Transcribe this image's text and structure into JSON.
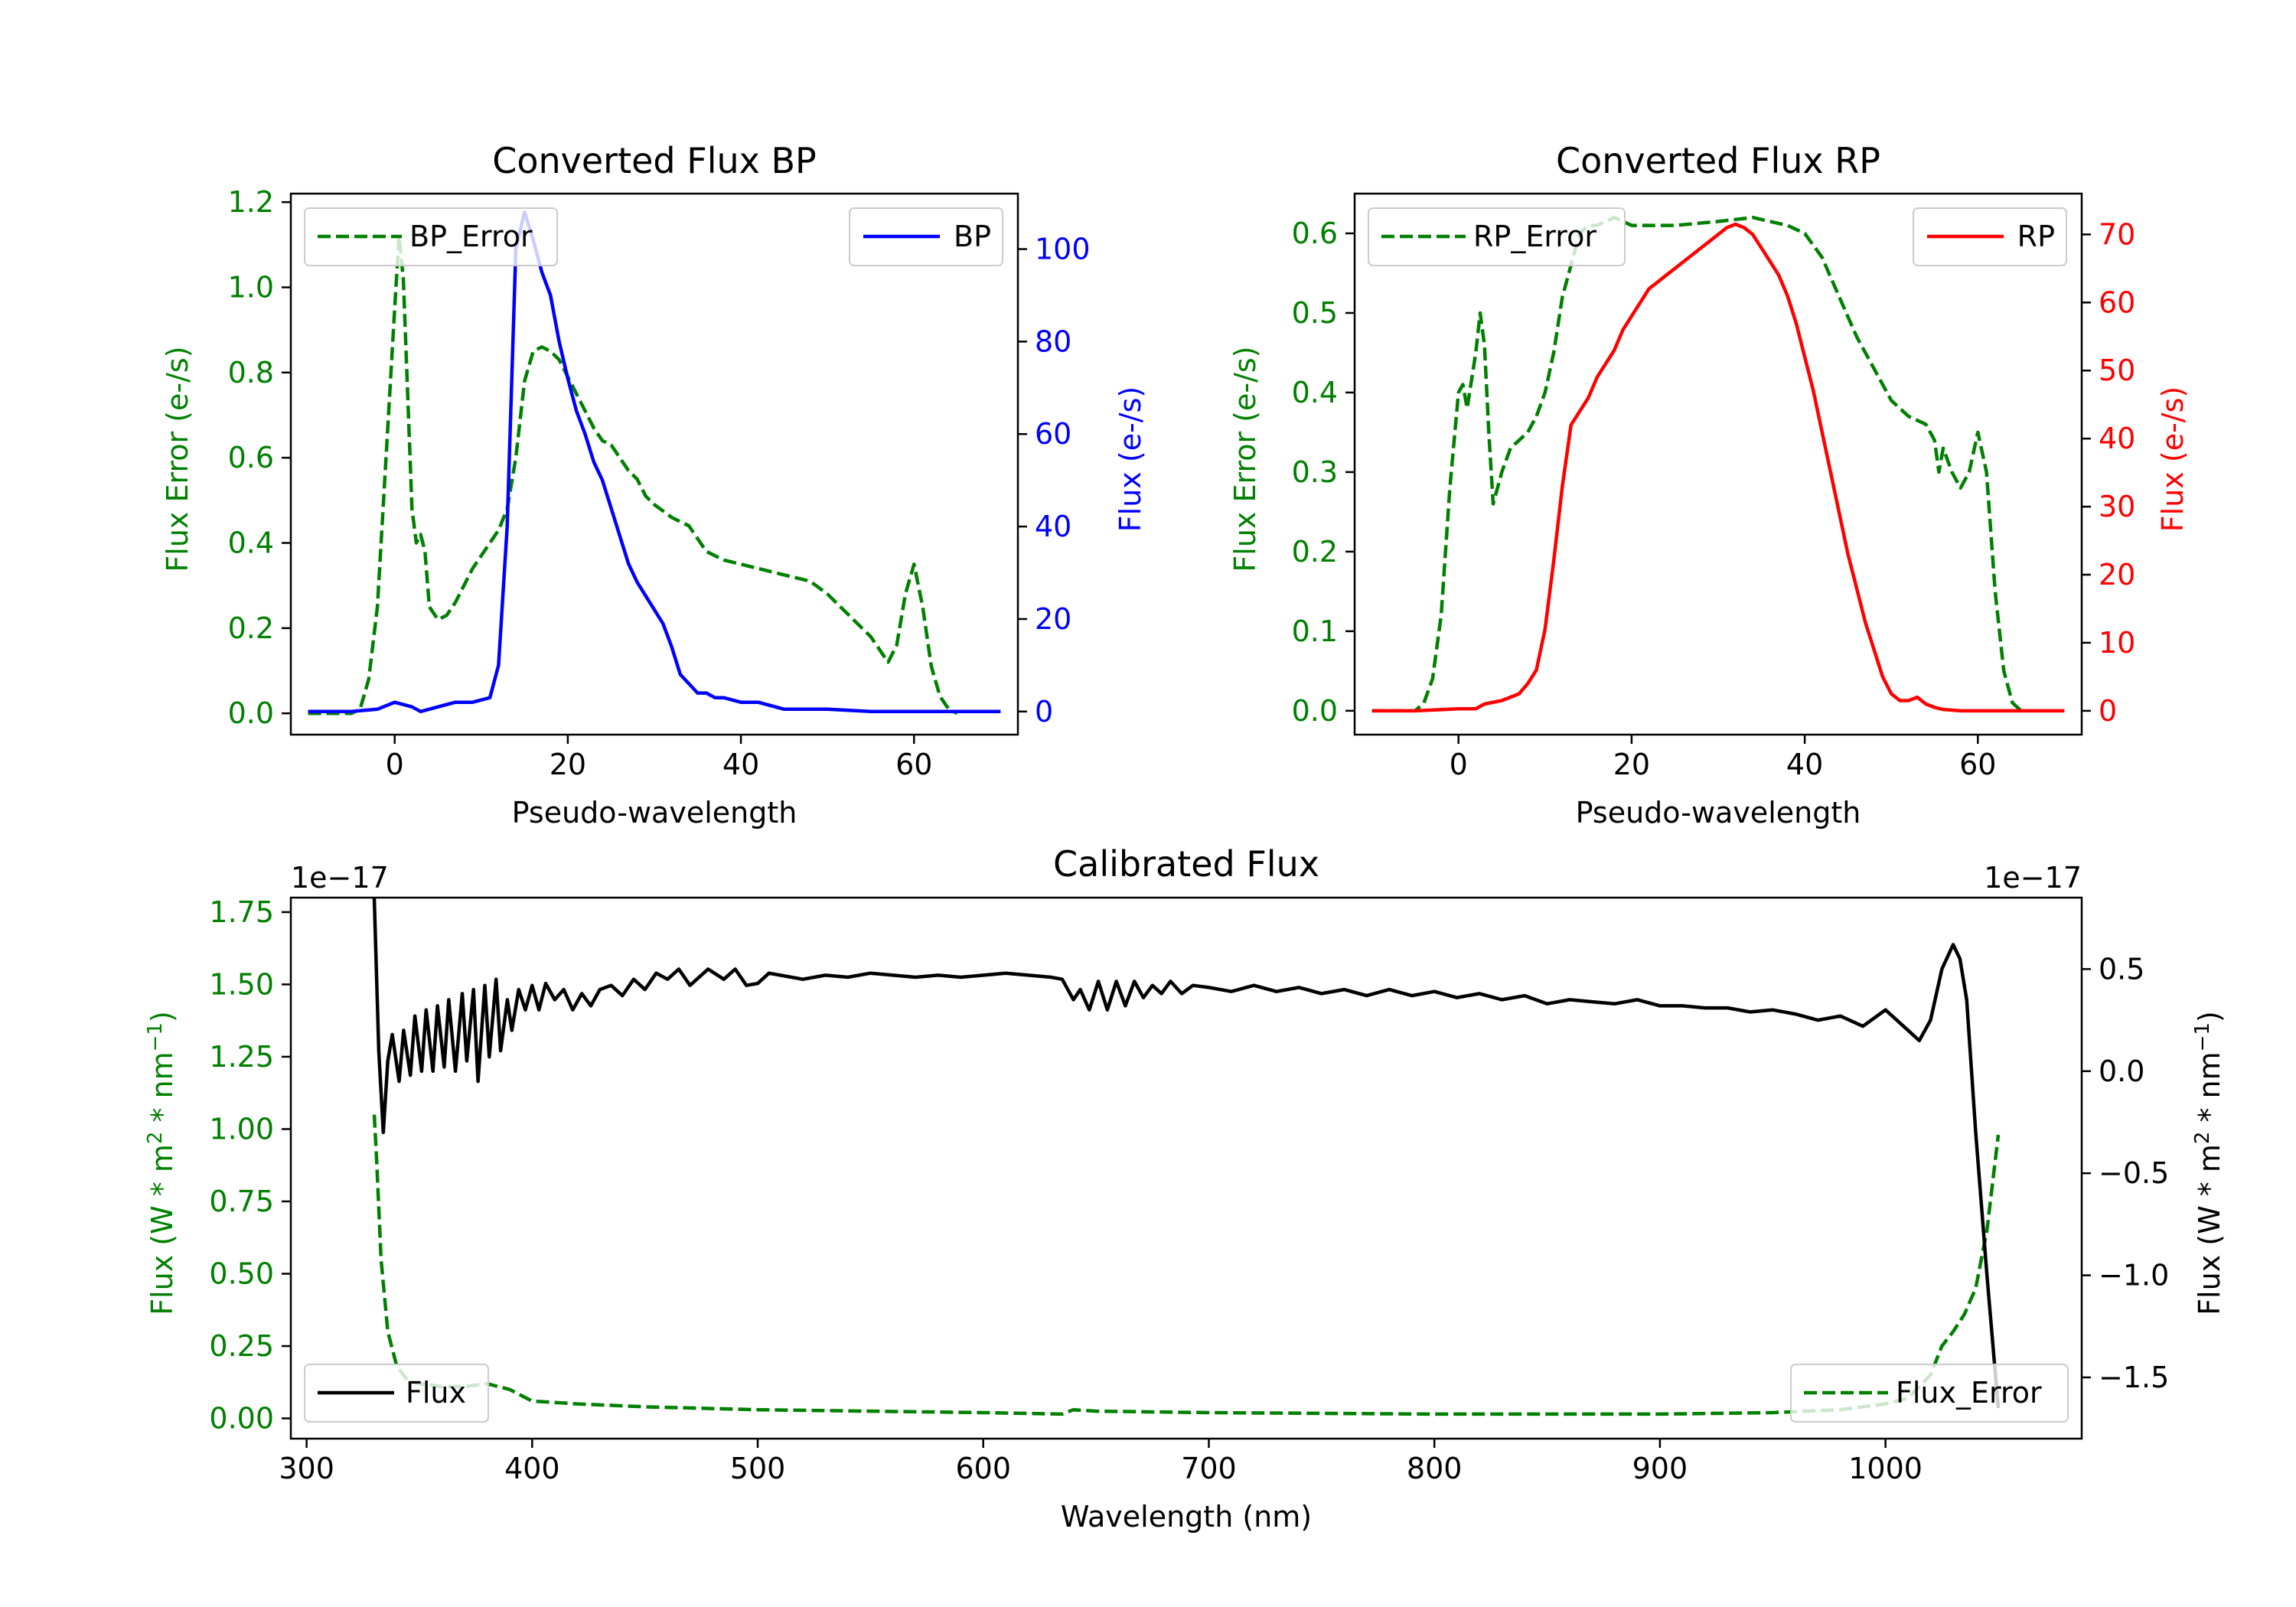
{
  "chart_data": [
    {
      "id": "bp",
      "type": "line",
      "title": "Converted Flux BP",
      "xlabel": "Pseudo-wavelength",
      "xlim": [
        -12,
        72
      ],
      "xticks": [
        0,
        20,
        40,
        60
      ],
      "left_axis": {
        "label": "Flux Error (e-/s)",
        "color": "#008000",
        "lim": [
          -0.05,
          1.22
        ],
        "ticks": [
          "0.0",
          "0.2",
          "0.4",
          "0.6",
          "0.8",
          "1.0",
          "1.2"
        ]
      },
      "right_axis": {
        "label": "Flux (e-/s)",
        "color": "#0000ff",
        "lim": [
          -5,
          112
        ],
        "ticks": [
          "0",
          "20",
          "40",
          "60",
          "80",
          "100"
        ]
      },
      "series": [
        {
          "name": "BP_Error",
          "axis": "left",
          "color": "#008000",
          "dashed": true,
          "x": [
            -10,
            -5,
            -4,
            -3,
            -2,
            -1,
            0,
            0.5,
            1,
            2,
            2.5,
            3,
            3.5,
            4,
            5,
            6,
            7,
            8,
            9,
            10,
            11,
            12,
            13,
            14,
            15,
            16,
            17,
            18,
            19,
            20,
            21,
            22,
            23,
            24,
            25,
            26,
            27,
            28,
            29,
            30,
            32,
            34,
            35,
            36,
            38,
            40,
            44,
            48,
            50,
            52,
            55,
            57,
            58,
            59,
            60,
            61,
            62,
            63,
            64,
            65
          ],
          "y": [
            0,
            0.0,
            0.01,
            0.08,
            0.25,
            0.6,
            0.95,
            1.12,
            1.02,
            0.48,
            0.4,
            0.42,
            0.38,
            0.25,
            0.22,
            0.23,
            0.26,
            0.3,
            0.34,
            0.37,
            0.4,
            0.43,
            0.48,
            0.6,
            0.78,
            0.85,
            0.86,
            0.85,
            0.83,
            0.79,
            0.75,
            0.71,
            0.67,
            0.64,
            0.63,
            0.6,
            0.57,
            0.55,
            0.51,
            0.49,
            0.46,
            0.44,
            0.41,
            0.38,
            0.36,
            0.35,
            0.33,
            0.31,
            0.28,
            0.24,
            0.18,
            0.12,
            0.16,
            0.28,
            0.35,
            0.25,
            0.11,
            0.04,
            0.01,
            0.0
          ]
        },
        {
          "name": "BP",
          "axis": "right",
          "color": "#0000ff",
          "dashed": false,
          "x": [
            -10,
            -5,
            -2,
            0,
            2,
            3,
            5,
            7,
            9,
            11,
            12,
            13,
            14,
            15,
            16,
            17,
            18,
            19,
            20,
            21,
            22,
            23,
            24,
            25,
            26,
            27,
            28,
            29,
            30,
            31,
            32,
            33,
            34,
            35,
            36,
            37,
            38,
            40,
            42,
            45,
            50,
            55,
            60,
            65,
            70
          ],
          "y": [
            0,
            0,
            0.5,
            2,
            1,
            0,
            1,
            2,
            2,
            3,
            10,
            40,
            100,
            108,
            102,
            95,
            90,
            80,
            72,
            65,
            60,
            54,
            50,
            44,
            38,
            32,
            28,
            25,
            22,
            19,
            14,
            8,
            6,
            4,
            4,
            3,
            3,
            2,
            2,
            0.5,
            0.5,
            0,
            0,
            0,
            0
          ]
        }
      ],
      "legend": [
        {
          "label": "BP_Error",
          "position": "upper left"
        },
        {
          "label": "BP",
          "position": "upper right"
        }
      ]
    },
    {
      "id": "rp",
      "type": "line",
      "title": "Converted Flux RP",
      "xlabel": "Pseudo-wavelength",
      "xlim": [
        -12,
        72
      ],
      "xticks": [
        0,
        20,
        40,
        60
      ],
      "left_axis": {
        "label": "Flux Error (e-/s)",
        "color": "#008000",
        "lim": [
          -0.03,
          0.65
        ],
        "ticks": [
          "0.0",
          "0.1",
          "0.2",
          "0.3",
          "0.4",
          "0.5",
          "0.6"
        ]
      },
      "right_axis": {
        "label": "Flux (e-/s)",
        "color": "#ff0000",
        "lim": [
          -3.5,
          76
        ],
        "ticks": [
          "0",
          "10",
          "20",
          "30",
          "40",
          "50",
          "60",
          "70"
        ]
      },
      "series": [
        {
          "name": "RP_Error",
          "axis": "left",
          "color": "#008000",
          "dashed": true,
          "x": [
            -10,
            -5,
            -4,
            -3,
            -2,
            -1,
            0,
            0.5,
            1,
            2,
            2.5,
            3,
            3.5,
            4,
            5,
            6,
            7,
            8,
            9,
            10,
            11,
            12,
            13,
            14,
            15,
            16,
            17,
            18,
            20,
            25,
            30,
            34,
            36,
            38,
            40,
            42,
            44,
            46,
            48,
            50,
            52,
            54,
            55,
            55.5,
            56,
            57,
            58,
            59,
            60,
            61,
            62,
            63,
            64,
            65
          ],
          "y": [
            0,
            0.0,
            0.01,
            0.04,
            0.12,
            0.28,
            0.4,
            0.41,
            0.38,
            0.45,
            0.5,
            0.46,
            0.35,
            0.26,
            0.3,
            0.33,
            0.34,
            0.35,
            0.37,
            0.4,
            0.45,
            0.52,
            0.56,
            0.6,
            0.61,
            0.61,
            0.615,
            0.62,
            0.61,
            0.61,
            0.615,
            0.62,
            0.615,
            0.61,
            0.6,
            0.57,
            0.52,
            0.47,
            0.43,
            0.39,
            0.37,
            0.36,
            0.34,
            0.3,
            0.33,
            0.3,
            0.28,
            0.3,
            0.35,
            0.3,
            0.15,
            0.05,
            0.01,
            0.0
          ]
        },
        {
          "name": "RP",
          "axis": "right",
          "color": "#ff0000",
          "dashed": false,
          "x": [
            -10,
            -5,
            0,
            2,
            3,
            5,
            7,
            8,
            9,
            10,
            11,
            12,
            13,
            14,
            15,
            16,
            17,
            18,
            19,
            20,
            21,
            22,
            23,
            24,
            25,
            26,
            27,
            28,
            29,
            30,
            31,
            32,
            33,
            34,
            35,
            36,
            37,
            38,
            39,
            40,
            41,
            42,
            43,
            44,
            45,
            46,
            47,
            48,
            49,
            50,
            51,
            52,
            53,
            54,
            55,
            56,
            58,
            60,
            62,
            65,
            70
          ],
          "y": [
            0,
            0,
            0.3,
            0.3,
            1,
            1.5,
            2.5,
            4,
            6,
            12,
            22,
            33,
            42,
            44,
            46,
            49,
            51,
            53,
            56,
            58,
            60,
            62,
            63,
            64,
            65,
            66,
            67,
            68,
            69,
            70,
            71,
            71.5,
            71,
            70,
            68,
            66,
            64,
            61,
            57,
            52,
            47,
            41,
            35,
            29,
            23,
            18,
            13,
            9,
            5,
            2.5,
            1.5,
            1.5,
            2,
            1,
            0.5,
            0.2,
            0,
            0,
            0,
            0,
            0
          ]
        }
      ],
      "legend": [
        {
          "label": "RP_Error",
          "position": "upper left"
        },
        {
          "label": "RP",
          "position": "upper right"
        }
      ]
    },
    {
      "id": "cal",
      "type": "line",
      "title": "Calibrated Flux",
      "xlabel": "Wavelength (nm)",
      "xlim": [
        293,
        1087
      ],
      "xticks": [
        300,
        400,
        500,
        600,
        700,
        800,
        900,
        1000
      ],
      "left_axis": {
        "label_prefix": "Flux (W * m",
        "label_sup1": "2",
        "label_mid": " * nm",
        "label_sup2": "−1",
        "label_suffix": ")",
        "color": "#008000",
        "lim": [
          -0.07,
          1.8
        ],
        "multiplier": "1e−17",
        "ticks": [
          "0.00",
          "0.25",
          "0.50",
          "0.75",
          "1.00",
          "1.25",
          "1.50",
          "1.75"
        ]
      },
      "right_axis": {
        "label_prefix": "Flux (W * m",
        "label_sup1": "2",
        "label_mid": " * nm",
        "label_sup2": "−1",
        "label_suffix": ")",
        "color": "#000000",
        "lim": [
          -1.8,
          0.85
        ],
        "multiplier": "1e−17",
        "tick_values": [
          -1.5,
          -1.0,
          -0.5,
          0.0,
          0.5
        ],
        "ticks": [
          "−1.5",
          "−1.0",
          "−0.5",
          "0.0",
          "0.5"
        ]
      },
      "series": [
        {
          "name": "Flux_Error",
          "axis": "left",
          "color": "#008000",
          "dashed": true,
          "x": [
            330,
            331,
            333,
            336,
            340,
            345,
            350,
            360,
            370,
            380,
            390,
            400,
            420,
            450,
            500,
            550,
            600,
            635,
            640,
            650,
            700,
            800,
            900,
            950,
            980,
            1000,
            1010,
            1020,
            1025,
            1030,
            1035,
            1040,
            1045,
            1050
          ],
          "y": [
            1.05,
            0.9,
            0.55,
            0.3,
            0.18,
            0.13,
            0.12,
            0.11,
            0.11,
            0.12,
            0.1,
            0.06,
            0.05,
            0.04,
            0.03,
            0.025,
            0.02,
            0.015,
            0.03,
            0.025,
            0.02,
            0.015,
            0.015,
            0.02,
            0.03,
            0.05,
            0.07,
            0.15,
            0.25,
            0.3,
            0.36,
            0.45,
            0.65,
            0.98
          ]
        },
        {
          "name": "Flux",
          "axis": "right",
          "color": "#000000",
          "dashed": false,
          "x": [
            330,
            332,
            334,
            336,
            338,
            341,
            343,
            346,
            348,
            351,
            353,
            356,
            358,
            361,
            363,
            366,
            369,
            371,
            374,
            376,
            379,
            381,
            384,
            386,
            389,
            391,
            394,
            397,
            400,
            403,
            406,
            410,
            414,
            418,
            422,
            426,
            430,
            435,
            440,
            445,
            450,
            455,
            460,
            465,
            470,
            478,
            485,
            490,
            495,
            500,
            505,
            510,
            520,
            530,
            540,
            550,
            560,
            570,
            580,
            590,
            600,
            610,
            620,
            630,
            635,
            640,
            643,
            647,
            651,
            655,
            659,
            663,
            667,
            671,
            675,
            679,
            683,
            688,
            693,
            700,
            710,
            720,
            730,
            740,
            750,
            760,
            770,
            780,
            790,
            800,
            810,
            820,
            830,
            840,
            850,
            860,
            870,
            880,
            890,
            900,
            910,
            920,
            930,
            940,
            950,
            960,
            970,
            980,
            990,
            1000,
            1010,
            1015,
            1020,
            1025,
            1030,
            1033,
            1036,
            1040,
            1045,
            1050
          ],
          "y": [
            0.85,
            0.1,
            -0.3,
            0.05,
            0.18,
            -0.05,
            0.2,
            -0.02,
            0.27,
            0.0,
            0.3,
            0.0,
            0.32,
            0.02,
            0.35,
            0.0,
            0.38,
            0.05,
            0.4,
            -0.05,
            0.42,
            0.07,
            0.45,
            0.1,
            0.35,
            0.2,
            0.4,
            0.3,
            0.42,
            0.3,
            0.43,
            0.35,
            0.4,
            0.3,
            0.38,
            0.32,
            0.4,
            0.42,
            0.37,
            0.45,
            0.4,
            0.48,
            0.45,
            0.5,
            0.42,
            0.5,
            0.45,
            0.5,
            0.42,
            0.43,
            0.48,
            0.47,
            0.45,
            0.47,
            0.46,
            0.48,
            0.47,
            0.46,
            0.47,
            0.46,
            0.47,
            0.48,
            0.47,
            0.46,
            0.45,
            0.35,
            0.4,
            0.3,
            0.44,
            0.3,
            0.44,
            0.32,
            0.44,
            0.36,
            0.42,
            0.38,
            0.44,
            0.38,
            0.42,
            0.41,
            0.39,
            0.42,
            0.39,
            0.41,
            0.38,
            0.4,
            0.37,
            0.4,
            0.37,
            0.39,
            0.36,
            0.38,
            0.35,
            0.37,
            0.33,
            0.35,
            0.34,
            0.33,
            0.35,
            0.32,
            0.32,
            0.31,
            0.31,
            0.29,
            0.3,
            0.28,
            0.25,
            0.27,
            0.22,
            0.3,
            0.2,
            0.15,
            0.25,
            0.5,
            0.62,
            0.55,
            0.35,
            -0.3,
            -1.0,
            -1.65
          ]
        }
      ],
      "legend": [
        {
          "label": "Flux",
          "position": "lower left"
        },
        {
          "label": "Flux_Error",
          "position": "lower right"
        }
      ]
    }
  ]
}
